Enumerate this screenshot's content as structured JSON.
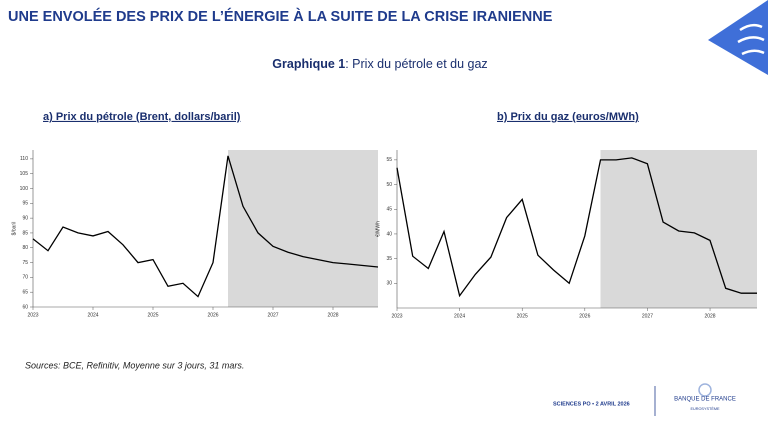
{
  "header": {
    "title": "UNE ENVOLÉE DES PRIX DE L’ÉNERGIE À LA SUITE DE LA CRISE IRANIENNE",
    "figure_number": "Graphique 1",
    "figure_title": ":  Prix du pétrole et du gaz"
  },
  "chart_data": [
    {
      "type": "line",
      "title": "a) Prix du pétrole (Brent, dollars/baril)",
      "y_label": "$/baril",
      "categories": [
        "2023",
        null,
        null,
        null,
        "2024",
        null,
        null,
        null,
        "2025",
        null,
        null,
        null,
        "2026",
        null,
        null,
        null,
        "2027",
        null,
        null,
        null,
        "2028",
        null,
        null,
        null
      ],
      "values": [
        83,
        79,
        87,
        85,
        84,
        85.5,
        81,
        75,
        76,
        67,
        68,
        63.5,
        75,
        111,
        94,
        85,
        80.5,
        78.5,
        77,
        76,
        75,
        74.5,
        74,
        73.5
      ],
      "color": "#000000",
      "ylim": [
        60,
        113
      ],
      "yticks": [
        60,
        65,
        70,
        75,
        80,
        85,
        90,
        95,
        100,
        105,
        110
      ],
      "shade_from_index": 13,
      "shade_color": "#d9d9d9"
    },
    {
      "type": "line",
      "title": "b) Prix du gaz (euros/MWh)",
      "y_label": "€/MWh",
      "categories": [
        "2023",
        null,
        null,
        null,
        "2024",
        null,
        null,
        null,
        "2025",
        null,
        null,
        null,
        "2026",
        null,
        null,
        null,
        "2027",
        null,
        null,
        null,
        "2028",
        null,
        null,
        null
      ],
      "values": [
        53.4,
        35.5,
        33,
        40.5,
        27.5,
        31.8,
        35.3,
        43.3,
        47,
        35.7,
        32.7,
        30,
        39.6,
        55,
        55,
        55.4,
        54.2,
        42.4,
        40.6,
        40.2,
        38.7,
        29,
        28,
        28
      ],
      "color": "#000000",
      "ylim": [
        25,
        57
      ],
      "yticks": [
        30,
        35,
        40,
        45,
        50,
        55
      ],
      "shade_from_index": 13,
      "shade_color": "#d9d9d9"
    }
  ],
  "sources": "Sources: BCE, Refinitiv, Moyenne sur 3 jours, 31 mars.",
  "footer": {
    "event": "SCIENCES PO • 2 AVRIL 2026",
    "logo_name": "BANQUE DE FRANCE",
    "logo_subtitle": "EUROSYSTÈME"
  }
}
